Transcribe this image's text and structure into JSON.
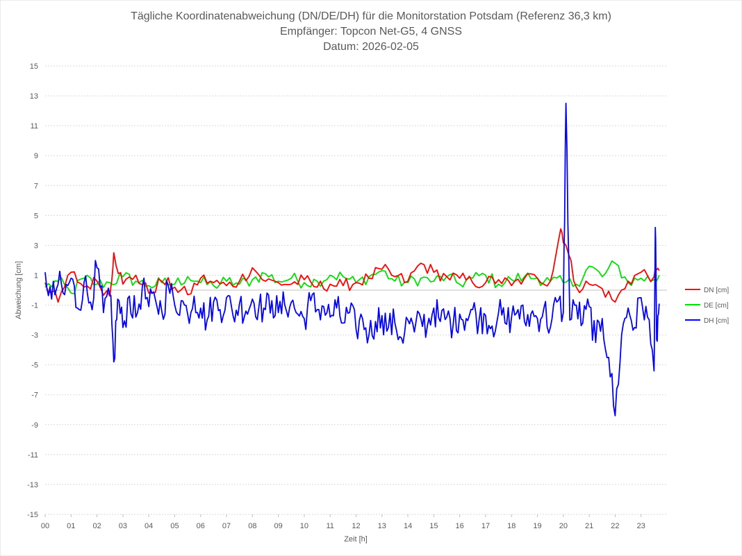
{
  "chart_data": {
    "type": "line",
    "title_lines": [
      "Tägliche Koordinatenabweichung (DN/DE/DH) für die Monitorstation Potsdam (Referenz 36,3 km)",
      "Empfänger: Topcon Net-G5, 4 GNSS",
      "Datum: 2026-02-05"
    ],
    "xlabel": "Zeit [h]",
    "ylabel": "Abweichung [cm]",
    "xlim": [
      0,
      24
    ],
    "ylim": [
      -15,
      15
    ],
    "x_ticks": [
      "00",
      "01",
      "02",
      "03",
      "04",
      "05",
      "06",
      "07",
      "08",
      "09",
      "10",
      "11",
      "12",
      "13",
      "14",
      "15",
      "16",
      "17",
      "18",
      "19",
      "20",
      "21",
      "22",
      "23"
    ],
    "y_ticks": [
      "15",
      "13",
      "11",
      "9",
      "7",
      "5",
      "3",
      "1",
      "-1",
      "-3",
      "-5",
      "-7",
      "-9",
      "-11",
      "-13",
      "-15"
    ],
    "y_tick_values": [
      15,
      13,
      11,
      9,
      7,
      5,
      3,
      1,
      -1,
      -3,
      -5,
      -7,
      -9,
      -11,
      -13,
      -15
    ],
    "legend_position": "right",
    "series": [
      {
        "name": "DN [cm]",
        "color": "#ff0000",
        "x": [
          0,
          0.5,
          1,
          1.5,
          2,
          2.5,
          2.65,
          3,
          3.5,
          4,
          4.5,
          5,
          5.5,
          6,
          6.5,
          7,
          7.5,
          8,
          8.5,
          9,
          9.5,
          10,
          10.5,
          11,
          11.5,
          12,
          12.5,
          13,
          13.5,
          14,
          14.5,
          15,
          15.5,
          16,
          16.5,
          17,
          17.5,
          18,
          18.5,
          19,
          19.5,
          19.9,
          20.1,
          20.5,
          21,
          21.5,
          22,
          22.5,
          23,
          23.5,
          23.7
        ],
        "values": [
          0.5,
          -0.8,
          1.2,
          0.2,
          0.6,
          -0.4,
          2.5,
          0.4,
          1.0,
          -0.2,
          0.6,
          0.2,
          -0.3,
          0.8,
          0.5,
          0.3,
          0.6,
          1.5,
          0.6,
          0.5,
          0.4,
          0.7,
          0.2,
          0.4,
          0.3,
          0.5,
          0.8,
          1.4,
          0.9,
          0.6,
          1.8,
          1.2,
          0.9,
          0.8,
          0.5,
          0.5,
          0.7,
          0.3,
          0.8,
          0.8,
          0.6,
          4.1,
          3.0,
          0.2,
          0.4,
          0.1,
          -0.8,
          0.6,
          1.2,
          0.9,
          1.3
        ]
      },
      {
        "name": "DE [cm]",
        "color": "#00e000",
        "x": [
          0,
          0.5,
          1,
          1.5,
          2,
          2.5,
          3,
          3.5,
          4,
          4.5,
          5,
          5.5,
          6,
          6.5,
          7,
          7.5,
          8,
          8.5,
          9,
          9.5,
          10,
          10.5,
          11,
          11.5,
          12,
          12.5,
          13,
          13.5,
          14,
          14.5,
          15,
          15.5,
          16,
          16.5,
          17,
          17.5,
          18,
          18.5,
          19,
          19.5,
          20,
          20.5,
          21,
          21.5,
          22,
          22.5,
          23,
          23.5,
          23.7
        ],
        "values": [
          0.2,
          0.6,
          -0.2,
          0.8,
          0.4,
          0.5,
          0.9,
          0.6,
          0.3,
          0.5,
          0.4,
          0.9,
          0.5,
          0.3,
          0.6,
          0.4,
          0.7,
          1.1,
          0.6,
          0.8,
          0.5,
          0.6,
          1.0,
          0.9,
          0.5,
          0.9,
          1.3,
          0.6,
          0.5,
          0.8,
          0.6,
          0.9,
          0.4,
          0.8,
          1.0,
          0.4,
          0.7,
          0.9,
          0.8,
          0.6,
          0.5,
          0.4,
          1.6,
          0.9,
          1.8,
          0.5,
          0.8,
          0.7,
          1.0
        ]
      },
      {
        "name": "DH [cm]",
        "color": "#0000ff",
        "x": [
          0,
          0.25,
          0.5,
          0.75,
          1,
          1.25,
          1.5,
          1.75,
          2,
          2.25,
          2.5,
          2.65,
          2.8,
          3,
          3.25,
          3.5,
          3.75,
          4,
          4.25,
          4.5,
          4.75,
          5,
          5.25,
          5.5,
          5.75,
          6,
          6.25,
          6.5,
          6.75,
          7,
          7.25,
          7.5,
          7.75,
          8,
          8.25,
          8.5,
          8.75,
          9,
          9.25,
          9.5,
          9.75,
          10,
          10.25,
          10.5,
          10.75,
          11,
          11.25,
          11.5,
          11.75,
          12,
          12.25,
          12.5,
          12.75,
          13,
          13.25,
          13.5,
          13.75,
          14,
          14.25,
          14.5,
          14.75,
          15,
          15.25,
          15.5,
          15.75,
          16,
          16.25,
          16.5,
          16.75,
          17,
          17.25,
          17.5,
          17.75,
          18,
          18.25,
          18.5,
          18.75,
          19,
          19.25,
          19.5,
          19.75,
          20,
          20.1,
          20.25,
          20.5,
          20.75,
          21,
          21.25,
          21.5,
          21.75,
          22,
          22.25,
          22.5,
          22.75,
          23,
          23.25,
          23.5,
          23.55,
          23.6,
          23.7
        ],
        "values": [
          1.2,
          -0.6,
          0.4,
          -0.3,
          0.8,
          -1.2,
          0.5,
          -0.8,
          1.5,
          -1.5,
          -0.3,
          -4.8,
          -0.6,
          -2.5,
          -0.4,
          -1.8,
          0.2,
          -1.1,
          -0.6,
          -1.4,
          0.3,
          -1.0,
          -0.7,
          -1.6,
          -0.4,
          -1.2,
          -2.0,
          -0.8,
          -1.3,
          -0.5,
          -1.7,
          -0.9,
          -1.4,
          -0.6,
          -1.1,
          -1.3,
          -0.7,
          -1.5,
          -1.0,
          -0.8,
          -1.6,
          -1.9,
          -0.7,
          -1.3,
          -1.1,
          -1.8,
          -1.2,
          -2.2,
          -1.5,
          -2.6,
          -1.9,
          -3.0,
          -2.1,
          -1.7,
          -2.5,
          -2.2,
          -3.2,
          -2.0,
          -2.8,
          -1.9,
          -2.4,
          -1.2,
          -2.1,
          -1.8,
          -2.3,
          -1.6,
          -1.9,
          -1.3,
          -2.0,
          -1.7,
          -2.4,
          -1.5,
          -2.2,
          -1.8,
          -1.3,
          -2.1,
          -1.6,
          -1.9,
          -1.2,
          -2.5,
          -0.8,
          -1.5,
          12.5,
          -2.0,
          -1.0,
          -2.2,
          -1.1,
          -3.5,
          -1.9,
          -4.5,
          -8.4,
          -3.0,
          -1.2,
          -2.5,
          -0.5,
          -1.8,
          -5.4,
          4.2,
          -3.3,
          -0.9
        ]
      }
    ]
  }
}
